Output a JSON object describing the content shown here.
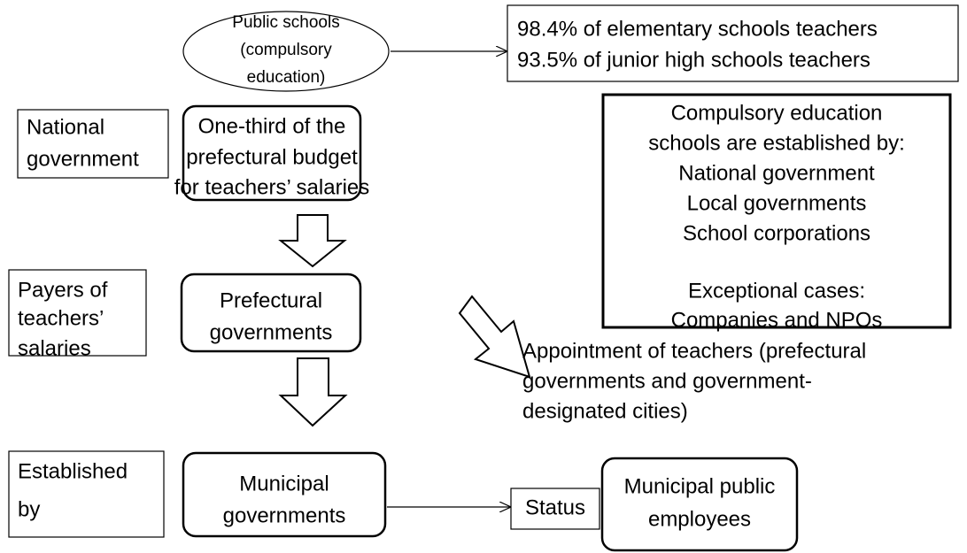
{
  "public_schools": {
    "lines": [
      "Public schools",
      "(compulsory",
      "education)"
    ]
  },
  "ratio_box": {
    "lines": [
      "98.4% of elementary schools teachers",
      "93.5% of junior high schools teachers"
    ]
  },
  "national_label": {
    "lines": [
      "National",
      "government"
    ]
  },
  "national_node": {
    "lines": [
      "One-third of the",
      "prefectural budget",
      "for teachers’ salaries"
    ]
  },
  "establishers_box": {
    "lines": [
      "Compulsory education",
      "schools are established by:",
      "National government",
      "Local governments",
      "School corporations",
      "Exceptional cases:",
      "Companies and NPOs"
    ]
  },
  "payers_label": {
    "lines": [
      "Payers of",
      "teachers’",
      "salaries"
    ]
  },
  "prefectural_node": {
    "lines": [
      "Prefectural",
      "governments"
    ]
  },
  "appointment_note": {
    "lines": [
      "Appointment of teachers (prefectural",
      "governments and  government-",
      "designated cities)"
    ]
  },
  "established_label": {
    "lines": [
      "Established",
      "by"
    ]
  },
  "municipal_node": {
    "lines": [
      "Municipal",
      "governments"
    ]
  },
  "status_label": {
    "text": "Status"
  },
  "employees_node": {
    "lines": [
      "Municipal public",
      "employees"
    ]
  }
}
